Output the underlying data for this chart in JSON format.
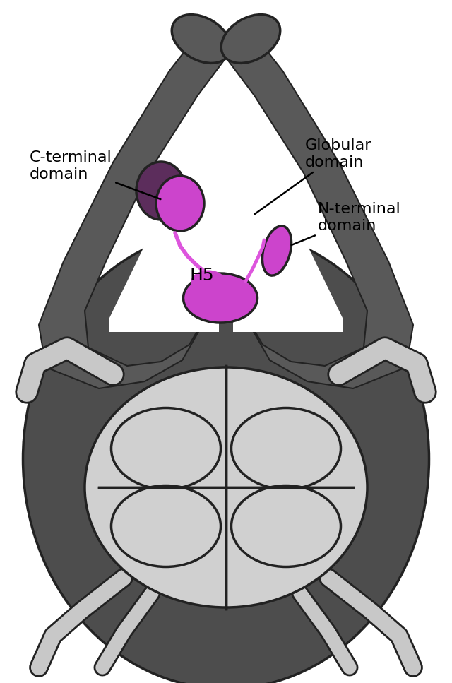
{
  "background_color": "#ffffff",
  "arch_color": "#595959",
  "oval_color": "#4d4d4d",
  "nuc_color": "#d0d0d0",
  "dna_color": "#c8c8c8",
  "outline_color": "#222222",
  "magenta": "#cc44cc",
  "magenta_light": "#dd55dd",
  "purple_dark": "#5c2d5c",
  "figsize": [
    6.4,
    9.67
  ],
  "dpi": 100,
  "labels": {
    "C_terminal": "C-terminal\ndomain",
    "H5": "H5",
    "Globular": "Globular\ndomain",
    "N_terminal": "N-terminal\ndomain"
  },
  "label_fontsize": 16
}
